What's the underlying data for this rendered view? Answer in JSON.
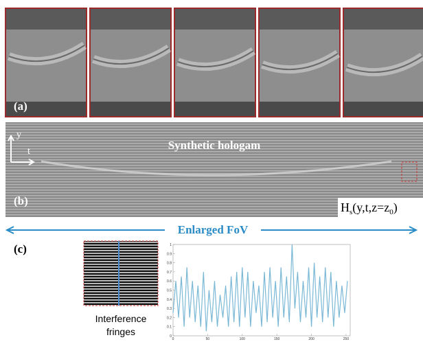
{
  "panel_a": {
    "label": "(a)"
  },
  "panel_b": {
    "label": "(b)",
    "title": "Synthetic hologam",
    "axis_y": "y",
    "axis_t": "t",
    "formula": {
      "main": "H",
      "sub": "s",
      "rest": "(y,t,z=z",
      "sub2": "0",
      "close": ")"
    }
  },
  "fov": {
    "label": "Enlarged FoV"
  },
  "panel_c": {
    "label": "(c)",
    "caption_1": "Interference",
    "caption_2": "fringes"
  },
  "chart_data": {
    "type": "line",
    "color": "#7ab8d6",
    "x": [
      0,
      4,
      8,
      12,
      16,
      20,
      24,
      28,
      32,
      36,
      40,
      44,
      48,
      52,
      56,
      60,
      64,
      68,
      72,
      76,
      80,
      84,
      88,
      92,
      96,
      100,
      104,
      108,
      112,
      116,
      120,
      124,
      128,
      132,
      136,
      140,
      144,
      148,
      152,
      156,
      160,
      164,
      168,
      172,
      176,
      180,
      184,
      188,
      192,
      196,
      200,
      204,
      208,
      212,
      216,
      220,
      224,
      228,
      232,
      236,
      240,
      244,
      248,
      252
    ],
    "values": [
      0.25,
      0.6,
      0.2,
      0.65,
      0.1,
      0.75,
      0.2,
      0.6,
      0.15,
      0.55,
      0.1,
      0.7,
      0.05,
      0.5,
      0.15,
      0.6,
      0.1,
      0.45,
      0.2,
      0.55,
      0.1,
      0.65,
      0.15,
      0.7,
      0.1,
      0.75,
      0.2,
      0.7,
      0.1,
      0.6,
      0.25,
      0.55,
      0.1,
      0.7,
      0.15,
      0.75,
      0.2,
      0.6,
      0.1,
      0.75,
      0.2,
      0.65,
      0.15,
      1.0,
      0.3,
      0.7,
      0.15,
      0.6,
      0.2,
      0.75,
      0.1,
      0.8,
      0.2,
      0.65,
      0.15,
      0.75,
      0.2,
      0.7,
      0.1,
      0.6,
      0.2,
      0.55,
      0.25,
      0.6
    ],
    "xlim": [
      0,
      256
    ],
    "ylim": [
      0,
      1
    ],
    "xticks": [
      0,
      50,
      100,
      150,
      200,
      250
    ],
    "yticks": [
      0,
      0.1,
      0.2,
      0.3,
      0.4,
      0.5,
      0.6,
      0.7,
      0.8,
      0.9,
      1
    ]
  }
}
